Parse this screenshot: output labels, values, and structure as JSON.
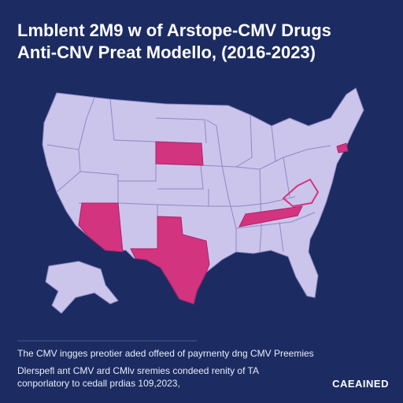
{
  "header": {
    "title": "Lmblent 2M9 w of Arstope-CMV Drugs",
    "subtitle": "Anti-CNV Preat Modello, (2016-2023)"
  },
  "caption": {
    "line1": "The CMV ingges preotier aded offeed of payrnenty dng CMV Preemies",
    "line2": "Dlerspefl ant CMV ard CMlv sremies condeed renity of TA",
    "line3": "conporlatory to cedall prdias 109,2023,"
  },
  "logo": "CAEAINED"
}
